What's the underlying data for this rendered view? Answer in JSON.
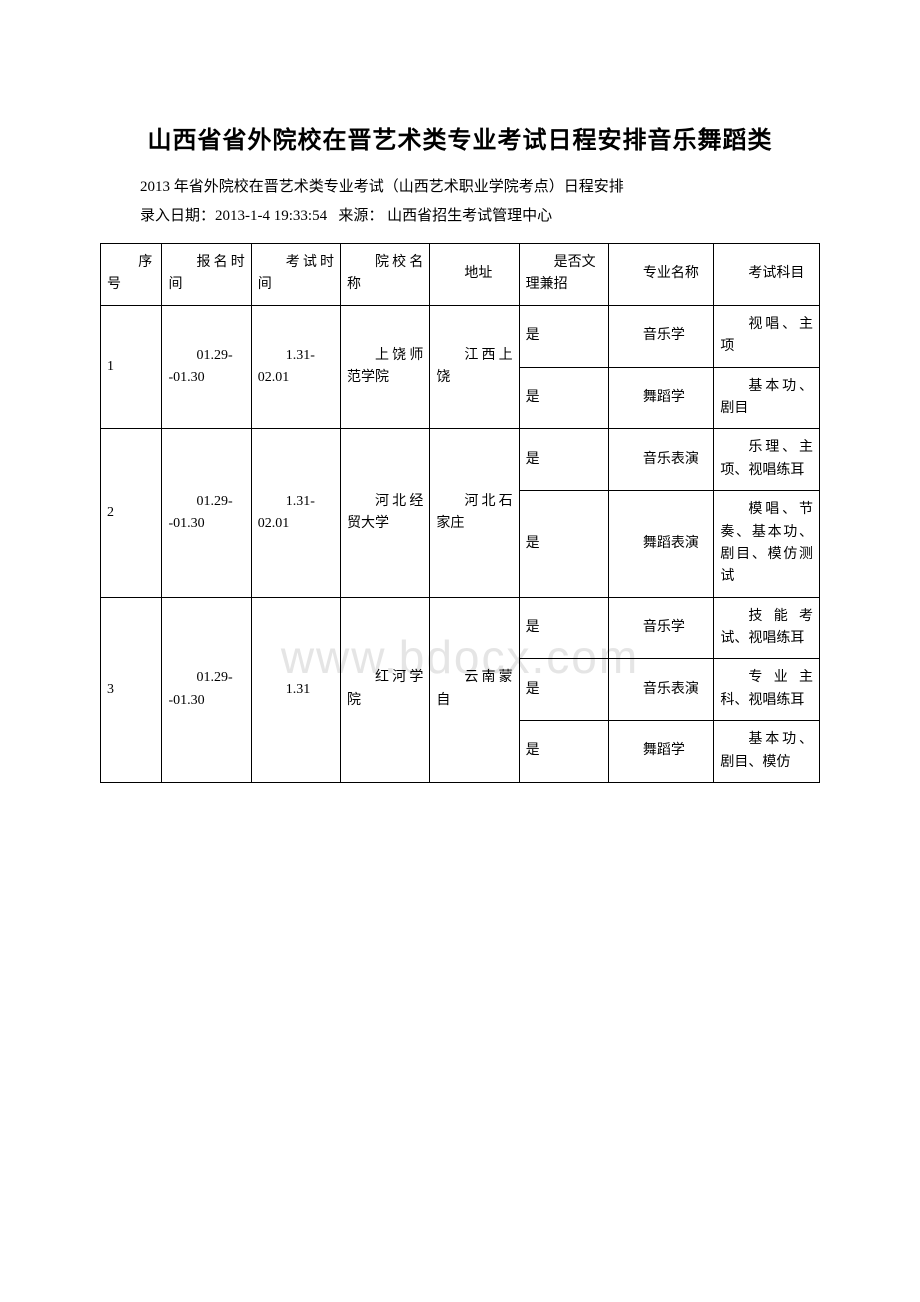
{
  "watermark": "www.bdocx.com",
  "title": "山西省省外院校在晋艺术类专业考试日程安排音乐舞蹈类",
  "subtitle": "2013 年省外院校在晋艺术类专业考试（山西艺术职业学院考点）日程安排",
  "meta_date_label": "录入日期：",
  "meta_date": "2013-1-4 19:33:54",
  "meta_source_label": "来源：",
  "meta_source": "山西省招生考试管理中心",
  "headers": {
    "seq": "序号",
    "reg": "报名时间",
    "exam": "考试时间",
    "school": "院校名称",
    "addr": "地址",
    "both": "是否文理兼招",
    "major": "专业名称",
    "subj": "考试科目"
  },
  "rows": [
    {
      "seq": "1",
      "reg": "01.29--01.30",
      "exam": "1.31-02.01",
      "school": "上饶师范学院",
      "addr": "江西上饶",
      "entries": [
        {
          "both": "是",
          "major": "音乐学",
          "subj": "视唱、主项"
        },
        {
          "both": "是",
          "major": "舞蹈学",
          "subj": "基本功、剧目"
        }
      ]
    },
    {
      "seq": "2",
      "reg": "01.29--01.30",
      "exam": "1.31-02.01",
      "school": "河北经贸大学",
      "addr": "河北石家庄",
      "entries": [
        {
          "both": "是",
          "major": "音乐表演",
          "subj": "乐理、主项、视唱练耳"
        },
        {
          "both": "是",
          "major": "舞蹈表演",
          "subj": "模唱、节奏、基本功、剧目、模仿测试"
        }
      ]
    },
    {
      "seq": "3",
      "reg": "01.29--01.30",
      "exam": "1.31",
      "school": "红河学院",
      "addr": "云南蒙自",
      "entries": [
        {
          "both": "是",
          "major": "音乐学",
          "subj": "技能考试、视唱练耳"
        },
        {
          "both": "是",
          "major": "音乐表演",
          "subj": "专业主科、视唱练耳"
        },
        {
          "both": "是",
          "major": "舞蹈学",
          "subj": "基本功、剧目、模仿"
        }
      ]
    }
  ]
}
